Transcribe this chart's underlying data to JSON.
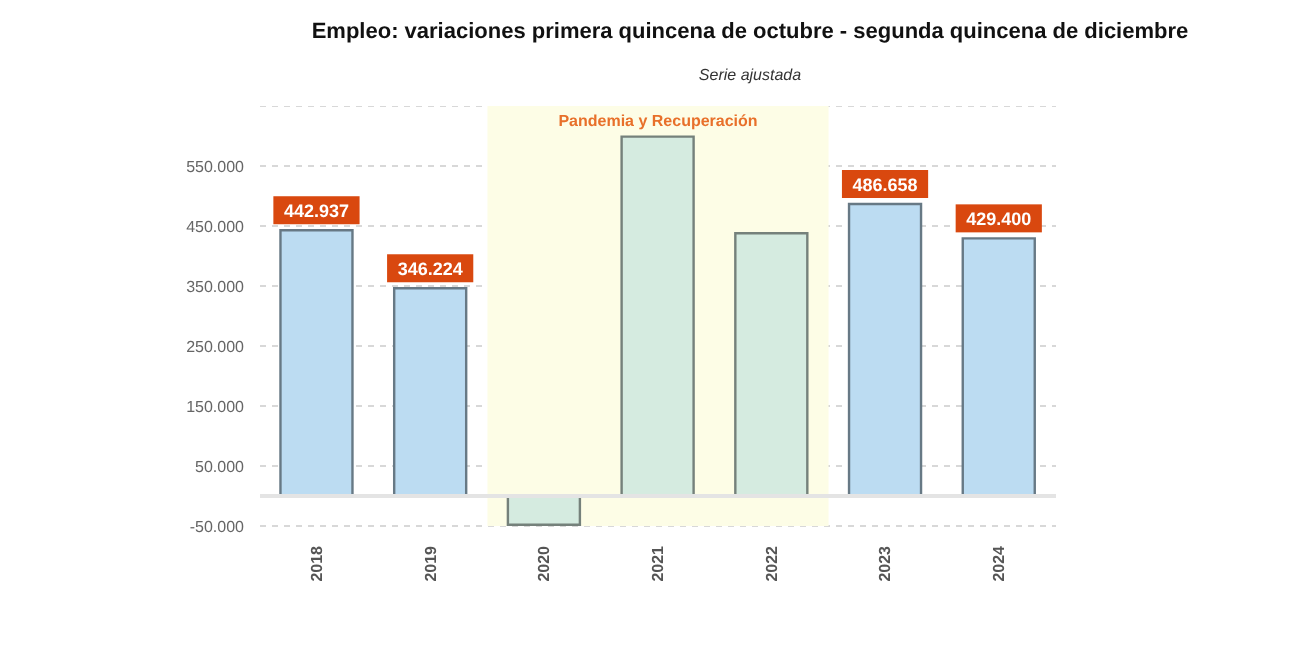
{
  "chart_data": {
    "type": "bar",
    "title": "Empleo: variaciones primera quincena de octubre - segunda quincena de diciembre",
    "subtitle": "Serie ajustada",
    "categories": [
      "2018",
      "2019",
      "2020",
      "2021",
      "2022",
      "2023",
      "2024"
    ],
    "values": [
      442937,
      346224,
      -48000,
      599000,
      438000,
      486658,
      429400
    ],
    "value_labels": [
      "442.937",
      "346.224",
      null,
      null,
      null,
      "486.658",
      "429.400"
    ],
    "colors": [
      "#bcdcf2",
      "#bcdcf2",
      "#d5ebe0",
      "#d5ebe0",
      "#d5ebe0",
      "#bcdcf2",
      "#bcdcf2"
    ],
    "ylim": [
      -50000,
      650000
    ],
    "yticks": [
      {
        "value": -50000,
        "label": "-50.000"
      },
      {
        "value": 50000,
        "label": "50.000"
      },
      {
        "value": 150000,
        "label": "150.000"
      },
      {
        "value": 250000,
        "label": "250.000"
      },
      {
        "value": 350000,
        "label": "350.000"
      },
      {
        "value": 450000,
        "label": "450.000"
      },
      {
        "value": 550000,
        "label": "550.000"
      }
    ],
    "bands": [
      {
        "axis": "x",
        "from": "2020",
        "to": "2022",
        "label": "Pandemia y Recuperación",
        "color": "#fdfde6"
      }
    ],
    "grid": "y"
  }
}
